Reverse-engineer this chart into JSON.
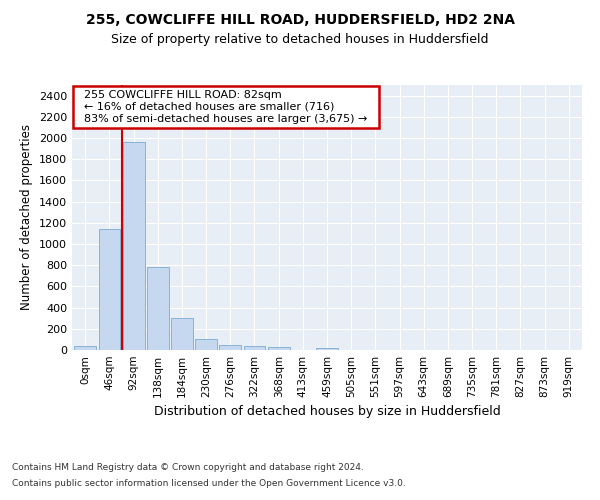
{
  "title1": "255, COWCLIFFE HILL ROAD, HUDDERSFIELD, HD2 2NA",
  "title2": "Size of property relative to detached houses in Huddersfield",
  "xlabel": "Distribution of detached houses by size in Huddersfield",
  "ylabel": "Number of detached properties",
  "footnote1": "Contains HM Land Registry data © Crown copyright and database right 2024.",
  "footnote2": "Contains public sector information licensed under the Open Government Licence v3.0.",
  "bar_labels": [
    "0sqm",
    "46sqm",
    "92sqm",
    "138sqm",
    "184sqm",
    "230sqm",
    "276sqm",
    "322sqm",
    "368sqm",
    "413sqm",
    "459sqm",
    "505sqm",
    "551sqm",
    "597sqm",
    "643sqm",
    "689sqm",
    "735sqm",
    "781sqm",
    "827sqm",
    "873sqm",
    "919sqm"
  ],
  "bar_values": [
    35,
    1140,
    1960,
    780,
    300,
    105,
    45,
    35,
    25,
    0,
    20,
    0,
    0,
    0,
    0,
    0,
    0,
    0,
    0,
    0,
    0
  ],
  "bar_color": "#c5d8f0",
  "bar_edge_color": "#7bacd4",
  "ylim": [
    0,
    2500
  ],
  "yticks": [
    0,
    200,
    400,
    600,
    800,
    1000,
    1200,
    1400,
    1600,
    1800,
    2000,
    2200,
    2400
  ],
  "vline_x": 1.5,
  "annotation_title": "255 COWCLIFFE HILL ROAD: 82sqm",
  "annotation_line1": "← 16% of detached houses are smaller (716)",
  "annotation_line2": "83% of semi-detached houses are larger (3,675) →",
  "annotation_box_color": "#ffffff",
  "annotation_box_edge_color": "#cc0000",
  "vline_color": "#cc0000",
  "plot_bg_color": "#e8eef5"
}
